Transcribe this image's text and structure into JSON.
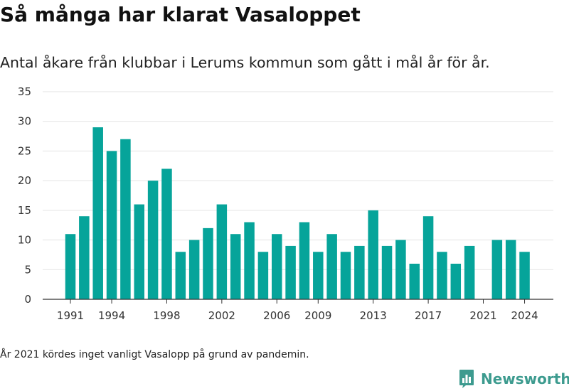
{
  "title": "Så många har klarat Vasaloppet",
  "subtitle": "Antal åkare från klubbar i Lerums kommun som gått i mål år för år.",
  "footnote": "År 2021 kördes inget vanligt Vasalopp på grund av pandemin.",
  "brand": {
    "name": "Newsworthy",
    "icon": "bar-chart-icon",
    "color": "#3d9b8f"
  },
  "chart_data": {
    "type": "bar",
    "title": "",
    "xlabel": "",
    "ylabel": "",
    "categories": [
      1991,
      1992,
      1993,
      1994,
      1995,
      1996,
      1997,
      1998,
      1999,
      2000,
      2001,
      2002,
      2003,
      2004,
      2005,
      2006,
      2007,
      2008,
      2009,
      2010,
      2011,
      2012,
      2013,
      2014,
      2015,
      2016,
      2017,
      2018,
      2019,
      2020,
      2021,
      2022,
      2023,
      2024
    ],
    "values": [
      11,
      14,
      29,
      25,
      27,
      16,
      20,
      22,
      8,
      10,
      12,
      16,
      11,
      13,
      8,
      11,
      9,
      13,
      8,
      11,
      8,
      9,
      15,
      9,
      10,
      6,
      14,
      8,
      6,
      9,
      0,
      10,
      10,
      8
    ],
    "x_tick_labels": [
      "1991",
      "1994",
      "1998",
      "2002",
      "2006",
      "2009",
      "2013",
      "2017",
      "2021",
      "2024"
    ],
    "y_ticks": [
      0,
      5,
      10,
      15,
      20,
      25,
      30,
      35
    ],
    "ylim": [
      0,
      35
    ],
    "bar_color": "#06a49a",
    "grid": true,
    "legend": "none"
  }
}
